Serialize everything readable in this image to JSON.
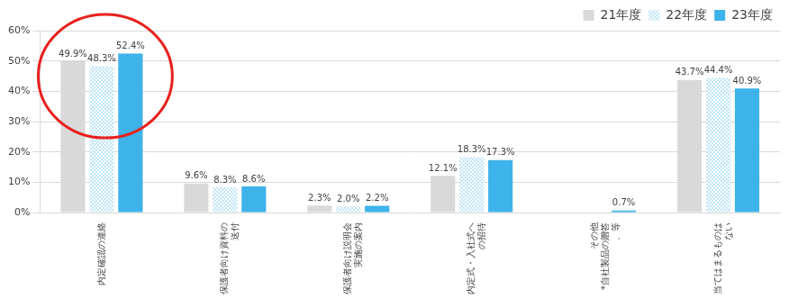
{
  "chart_data": {
    "type": "bar",
    "categories": [
      "内定確認の連絡",
      "保護者向け資料の送付",
      "保護者向け説明会実施の案内",
      "内定式・入社式への招待",
      "その他 *自社製品の贈答、等",
      "当てはまるものはない"
    ],
    "series": [
      {
        "name": "21年度",
        "color": "#d9d9d9",
        "values": [
          49.9,
          9.6,
          2.3,
          12.1,
          null,
          43.7
        ],
        "value_labels": [
          "49.9%",
          "9.6%",
          "2.3%",
          "12.1%",
          null,
          "43.7%"
        ]
      },
      {
        "name": "22年度",
        "color": "#bfe4f6",
        "values": [
          48.3,
          8.3,
          2.0,
          18.3,
          null,
          44.4
        ],
        "value_labels": [
          "48.3%",
          "8.3%",
          "2.0%",
          "18.3%",
          null,
          "44.4%"
        ]
      },
      {
        "name": "23年度",
        "color": "#3db3ea",
        "values": [
          52.4,
          8.6,
          2.2,
          17.3,
          0.7,
          40.9
        ],
        "value_labels": [
          "52.4%",
          "8.6%",
          "2.2%",
          "17.3%",
          "0.7%",
          "40.9%"
        ]
      }
    ],
    "ylim": [
      0,
      60
    ],
    "yticks": [
      {
        "value": 0,
        "label": "0%"
      },
      {
        "value": 10,
        "label": "10%"
      },
      {
        "value": 20,
        "label": "20%"
      },
      {
        "value": 30,
        "label": "30%"
      },
      {
        "value": 40,
        "label": "40%"
      },
      {
        "value": 50,
        "label": "50%"
      },
      {
        "value": 60,
        "label": "60%"
      }
    ],
    "grid": true,
    "legend": "upper right",
    "data_labels": true
  }
}
